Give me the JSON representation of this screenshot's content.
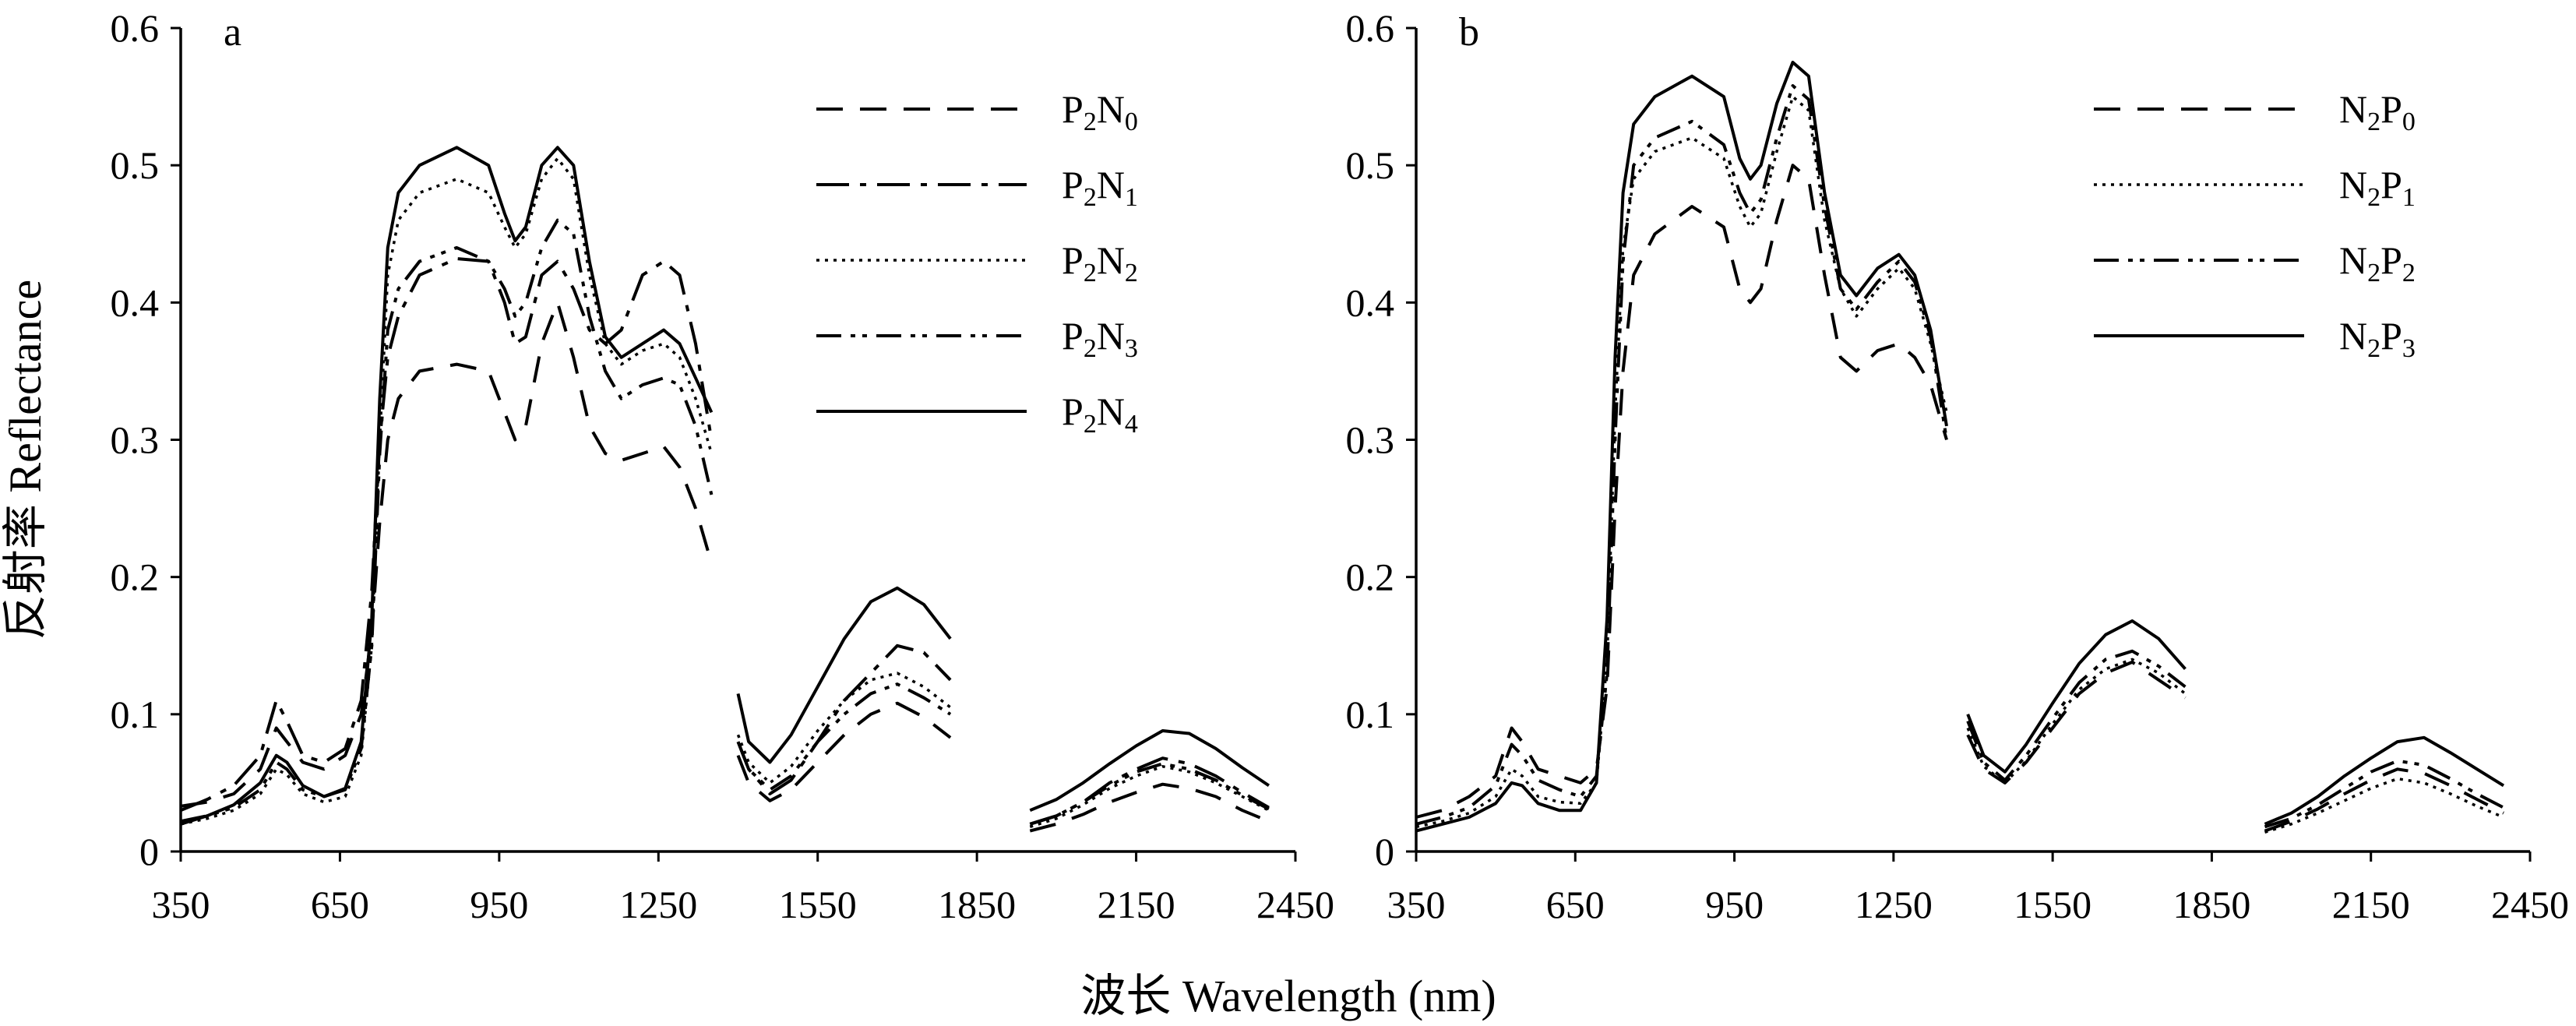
{
  "y_axis_label": "反射率 Reflectance",
  "x_axis_label": "波长 Wavelength (nm)",
  "chart_data": [
    {
      "type": "line",
      "panel_label": "a",
      "xlim": [
        350,
        2450
      ],
      "ylim": [
        0,
        0.6
      ],
      "xticks": [
        350,
        650,
        950,
        1250,
        1550,
        1850,
        2150,
        2450
      ],
      "yticks": [
        0,
        0.1,
        0.2,
        0.3,
        0.4,
        0.5,
        0.6
      ],
      "ytick_labels": [
        "0",
        "0.1",
        "0.2",
        "0.3",
        "0.4",
        "0.5",
        "0.6"
      ],
      "xlabel": "波长 Wavelength (nm)",
      "ylabel": "反射率 Reflectance",
      "legend_position": "top-right",
      "grid": false,
      "segments": [
        [
          350,
          1350
        ],
        [
          1400,
          1800
        ],
        [
          1950,
          2400
        ]
      ],
      "x": [
        350,
        400,
        450,
        500,
        530,
        550,
        580,
        620,
        660,
        690,
        710,
        725,
        740,
        760,
        800,
        870,
        930,
        960,
        980,
        1000,
        1030,
        1060,
        1090,
        1120,
        1150,
        1180,
        1220,
        1260,
        1290,
        1320,
        1350,
        1400,
        1420,
        1460,
        1500,
        1550,
        1600,
        1650,
        1700,
        1750,
        1800,
        1950,
        2000,
        2050,
        2100,
        2150,
        2200,
        2250,
        2300,
        2350,
        2400
      ],
      "series": [
        {
          "name": "P2N0",
          "name_base": "P",
          "name_sub1": "2",
          "name_mid": "N",
          "name_sub2": "0",
          "dash": "34,22",
          "width": 4,
          "values": [
            0.033,
            0.036,
            0.042,
            0.06,
            0.09,
            0.08,
            0.065,
            0.06,
            0.07,
            0.1,
            0.16,
            0.24,
            0.3,
            0.33,
            0.35,
            0.355,
            0.35,
            0.32,
            0.3,
            0.31,
            0.37,
            0.4,
            0.36,
            0.31,
            0.29,
            0.285,
            0.29,
            0.295,
            0.28,
            0.25,
            0.21,
            0.07,
            0.05,
            0.037,
            0.045,
            0.065,
            0.085,
            0.1,
            0.108,
            0.098,
            0.083,
            0.015,
            0.02,
            0.027,
            0.036,
            0.043,
            0.049,
            0.046,
            0.04,
            0.03,
            0.022
          ]
        },
        {
          "name": "P2N1",
          "name_base": "P",
          "name_sub1": "2",
          "name_mid": "N",
          "name_sub2": "1",
          "dash": "42,14,8,14",
          "width": 4,
          "values": [
            0.03,
            0.038,
            0.048,
            0.07,
            0.11,
            0.095,
            0.07,
            0.065,
            0.075,
            0.11,
            0.19,
            0.3,
            0.36,
            0.39,
            0.42,
            0.432,
            0.43,
            0.4,
            0.37,
            0.375,
            0.42,
            0.43,
            0.41,
            0.38,
            0.37,
            0.38,
            0.42,
            0.43,
            0.42,
            0.37,
            0.3,
            0.08,
            0.06,
            0.042,
            0.052,
            0.08,
            0.11,
            0.13,
            0.15,
            0.145,
            0.125,
            0.02,
            0.026,
            0.036,
            0.05,
            0.06,
            0.068,
            0.064,
            0.055,
            0.043,
            0.032
          ]
        },
        {
          "name": "P2N2",
          "name_base": "P",
          "name_sub1": "2",
          "name_mid": "N",
          "name_sub2": "2",
          "dash": "4,7",
          "width": 3.5,
          "values": [
            0.02,
            0.024,
            0.03,
            0.042,
            0.06,
            0.056,
            0.042,
            0.036,
            0.04,
            0.07,
            0.15,
            0.3,
            0.42,
            0.46,
            0.48,
            0.49,
            0.48,
            0.455,
            0.44,
            0.45,
            0.49,
            0.505,
            0.49,
            0.42,
            0.37,
            0.355,
            0.365,
            0.37,
            0.36,
            0.33,
            0.29,
            0.085,
            0.065,
            0.05,
            0.062,
            0.088,
            0.11,
            0.125,
            0.13,
            0.12,
            0.105,
            0.018,
            0.024,
            0.034,
            0.046,
            0.055,
            0.062,
            0.058,
            0.05,
            0.04,
            0.03
          ]
        },
        {
          "name": "P2N3",
          "name_base": "P",
          "name_sub1": "2",
          "name_mid": "N",
          "name_sub2": "3",
          "dash": "32,12,6,9,6,12",
          "width": 4,
          "values": [
            0.022,
            0.026,
            0.032,
            0.045,
            0.065,
            0.06,
            0.045,
            0.04,
            0.045,
            0.075,
            0.15,
            0.29,
            0.38,
            0.41,
            0.43,
            0.44,
            0.43,
            0.41,
            0.39,
            0.4,
            0.44,
            0.46,
            0.45,
            0.39,
            0.35,
            0.33,
            0.34,
            0.345,
            0.34,
            0.31,
            0.26,
            0.08,
            0.06,
            0.045,
            0.055,
            0.08,
            0.1,
            0.115,
            0.122,
            0.112,
            0.1,
            0.02,
            0.026,
            0.036,
            0.048,
            0.058,
            0.064,
            0.06,
            0.052,
            0.041,
            0.031
          ]
        },
        {
          "name": "P2N4",
          "name_base": "P",
          "name_sub1": "2",
          "name_mid": "N",
          "name_sub2": "4",
          "dash": "",
          "width": 4,
          "values": [
            0.02,
            0.026,
            0.034,
            0.05,
            0.07,
            0.065,
            0.048,
            0.04,
            0.046,
            0.08,
            0.17,
            0.33,
            0.44,
            0.48,
            0.5,
            0.513,
            0.5,
            0.465,
            0.445,
            0.455,
            0.5,
            0.513,
            0.5,
            0.43,
            0.375,
            0.36,
            0.37,
            0.38,
            0.37,
            0.345,
            0.32,
            0.115,
            0.08,
            0.065,
            0.085,
            0.12,
            0.155,
            0.182,
            0.192,
            0.18,
            0.155,
            0.03,
            0.038,
            0.05,
            0.064,
            0.077,
            0.088,
            0.086,
            0.075,
            0.061,
            0.048
          ]
        }
      ]
    },
    {
      "type": "line",
      "panel_label": "b",
      "xlim": [
        350,
        2450
      ],
      "ylim": [
        0,
        0.6
      ],
      "xticks": [
        350,
        650,
        950,
        1250,
        1550,
        1850,
        2150,
        2450
      ],
      "yticks": [
        0,
        0.1,
        0.2,
        0.3,
        0.4,
        0.5,
        0.6
      ],
      "ytick_labels": [
        "0",
        "0.1",
        "0.2",
        "0.3",
        "0.4",
        "0.5",
        "0.6"
      ],
      "xlabel": "波长 Wavelength (nm)",
      "ylabel": "反射率 Reflectance",
      "legend_position": "top-right",
      "grid": false,
      "segments": [
        [
          350,
          1350
        ],
        [
          1390,
          1800
        ],
        [
          1950,
          2400
        ]
      ],
      "x": [
        350,
        400,
        450,
        500,
        530,
        550,
        580,
        620,
        660,
        690,
        710,
        725,
        740,
        760,
        800,
        870,
        930,
        960,
        980,
        1000,
        1030,
        1060,
        1090,
        1120,
        1150,
        1180,
        1220,
        1260,
        1290,
        1320,
        1350,
        1390,
        1420,
        1460,
        1500,
        1550,
        1600,
        1650,
        1700,
        1750,
        1800,
        1950,
        2000,
        2050,
        2100,
        2150,
        2200,
        2250,
        2300,
        2350,
        2400
      ],
      "series": [
        {
          "name": "N2P0",
          "name_base": "N",
          "name_sub1": "2",
          "name_mid": "P",
          "name_sub2": "0",
          "dash": "34,22",
          "width": 4,
          "values": [
            0.025,
            0.03,
            0.04,
            0.055,
            0.09,
            0.08,
            0.06,
            0.055,
            0.05,
            0.06,
            0.12,
            0.25,
            0.35,
            0.42,
            0.45,
            0.47,
            0.455,
            0.41,
            0.4,
            0.41,
            0.46,
            0.5,
            0.49,
            0.42,
            0.36,
            0.35,
            0.365,
            0.37,
            0.36,
            0.34,
            0.3,
            0.085,
            0.06,
            0.05,
            0.065,
            0.09,
            0.115,
            0.13,
            0.138,
            0.125,
            0.112,
            0.015,
            0.022,
            0.031,
            0.042,
            0.052,
            0.06,
            0.057,
            0.048,
            0.038,
            0.028
          ]
        },
        {
          "name": "N2P1",
          "name_base": "N",
          "name_sub1": "2",
          "name_mid": "P",
          "name_sub2": "1",
          "dash": "4,7",
          "width": 3.5,
          "values": [
            0.018,
            0.022,
            0.028,
            0.04,
            0.06,
            0.055,
            0.04,
            0.036,
            0.035,
            0.05,
            0.14,
            0.32,
            0.44,
            0.49,
            0.51,
            0.52,
            0.505,
            0.47,
            0.455,
            0.465,
            0.51,
            0.55,
            0.54,
            0.46,
            0.41,
            0.39,
            0.41,
            0.425,
            0.41,
            0.37,
            0.32,
            0.09,
            0.062,
            0.05,
            0.066,
            0.093,
            0.118,
            0.133,
            0.14,
            0.13,
            0.115,
            0.014,
            0.02,
            0.028,
            0.037,
            0.046,
            0.053,
            0.05,
            0.042,
            0.033,
            0.025
          ]
        },
        {
          "name": "N2P2",
          "name_base": "N",
          "name_sub1": "2",
          "name_mid": "P",
          "name_sub2": "2",
          "dash": "32,12,6,9,6,12",
          "width": 4,
          "values": [
            0.02,
            0.025,
            0.032,
            0.048,
            0.078,
            0.07,
            0.052,
            0.045,
            0.04,
            0.055,
            0.13,
            0.3,
            0.43,
            0.5,
            0.52,
            0.532,
            0.515,
            0.48,
            0.465,
            0.475,
            0.52,
            0.558,
            0.548,
            0.47,
            0.41,
            0.395,
            0.415,
            0.43,
            0.415,
            0.375,
            0.3,
            0.095,
            0.065,
            0.052,
            0.07,
            0.097,
            0.123,
            0.14,
            0.146,
            0.135,
            0.12,
            0.018,
            0.024,
            0.034,
            0.046,
            0.058,
            0.066,
            0.063,
            0.053,
            0.042,
            0.032
          ]
        },
        {
          "name": "N2P3",
          "name_base": "N",
          "name_sub1": "2",
          "name_mid": "P",
          "name_sub2": "3",
          "dash": "",
          "width": 4,
          "values": [
            0.015,
            0.02,
            0.025,
            0.035,
            0.05,
            0.048,
            0.035,
            0.03,
            0.03,
            0.05,
            0.17,
            0.36,
            0.48,
            0.53,
            0.55,
            0.565,
            0.55,
            0.505,
            0.49,
            0.5,
            0.545,
            0.575,
            0.565,
            0.48,
            0.42,
            0.405,
            0.425,
            0.435,
            0.42,
            0.38,
            0.31,
            0.1,
            0.07,
            0.058,
            0.078,
            0.108,
            0.137,
            0.158,
            0.168,
            0.155,
            0.133,
            0.02,
            0.028,
            0.04,
            0.055,
            0.068,
            0.08,
            0.083,
            0.072,
            0.06,
            0.048
          ]
        }
      ]
    }
  ]
}
